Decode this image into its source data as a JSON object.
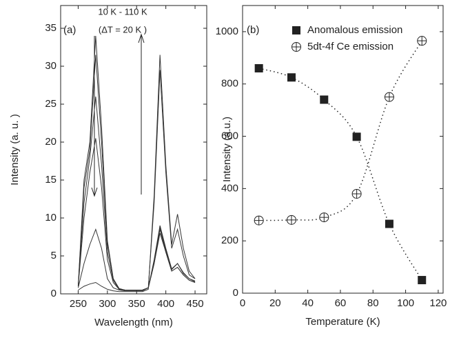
{
  "chart_data": [
    {
      "type": "line",
      "x_label": "Wavelength (nm)",
      "y_label": "Intensity (a. u. )",
      "annotations": [
        "(a)",
        "10 K - 110 K",
        "(ΔT = 20 K )"
      ],
      "xlim": [
        220,
        470
      ],
      "xticks": [
        250,
        300,
        350,
        400,
        450
      ],
      "ylim": [
        0,
        38
      ],
      "yticks": [
        0,
        5,
        10,
        15,
        20,
        25,
        30,
        35
      ],
      "x": [
        250,
        260,
        270,
        280,
        290,
        300,
        310,
        320,
        330,
        340,
        350,
        360,
        370,
        380,
        390,
        400,
        410,
        420,
        430,
        440,
        450
      ],
      "series": [
        {
          "color": "#333333",
          "values": [
            1,
            15,
            20,
            34,
            22,
            7,
            2,
            0.7,
            0.5,
            0.5,
            0.5,
            0.5,
            0.8,
            4,
            8,
            5.5,
            3,
            3.5,
            2.5,
            1.8,
            1.5
          ]
        },
        {
          "color": "#333333",
          "values": [
            1,
            14,
            19,
            31.5,
            20,
            6.5,
            2,
            0.7,
            0.5,
            0.5,
            0.5,
            0.5,
            0.8,
            4,
            8.5,
            5.5,
            3,
            3.5,
            2.5,
            1.8,
            1.5
          ]
        },
        {
          "color": "#333333",
          "values": [
            1,
            12,
            18,
            26,
            17,
            5.5,
            1.8,
            0.6,
            0.5,
            0.5,
            0.5,
            0.5,
            0.8,
            4.2,
            8.8,
            5.8,
            3.2,
            4,
            2.7,
            2,
            1.6
          ]
        },
        {
          "color": "#333333",
          "values": [
            1,
            10,
            16,
            20.5,
            14,
            4.5,
            1.5,
            0.6,
            0.5,
            0.5,
            0.5,
            0.5,
            0.8,
            4.5,
            9,
            6,
            3.3,
            4,
            2.8,
            2,
            1.7
          ]
        },
        {
          "color": "#333333",
          "values": [
            0.8,
            4,
            6.5,
            8.5,
            6,
            2,
            0.8,
            0.5,
            0.4,
            0.4,
            0.4,
            0.4,
            0.8,
            12,
            29.5,
            16,
            6,
            8.5,
            5,
            2.5,
            2
          ]
        },
        {
          "color": "#333333",
          "values": [
            0.5,
            1,
            1.3,
            1.5,
            1,
            0.6,
            0.4,
            0.3,
            0.3,
            0.3,
            0.3,
            0.3,
            0.6,
            13,
            31.5,
            17,
            6.5,
            10.5,
            6,
            3,
            2
          ]
        }
      ]
    },
    {
      "type": "scatter",
      "x_label": "Temperature (K)",
      "y_label": "Intensity (a.u.)",
      "annotations": [
        "(b)"
      ],
      "xlim": [
        0,
        123
      ],
      "xticks": [
        0,
        20,
        40,
        60,
        80,
        100,
        120
      ],
      "ylim": [
        0,
        1100
      ],
      "yticks": [
        0,
        200,
        400,
        600,
        800,
        1000
      ],
      "x": [
        10,
        30,
        50,
        70,
        90,
        110
      ],
      "series": [
        {
          "name": "Anomalous emission",
          "marker": "square",
          "color": "#222222",
          "values": [
            860,
            825,
            740,
            598,
            265,
            50
          ]
        },
        {
          "name": "5dt-4f Ce emission",
          "marker": "circle-plus",
          "color": "#222222",
          "values": [
            278,
            280,
            290,
            380,
            750,
            965
          ]
        }
      ]
    }
  ]
}
